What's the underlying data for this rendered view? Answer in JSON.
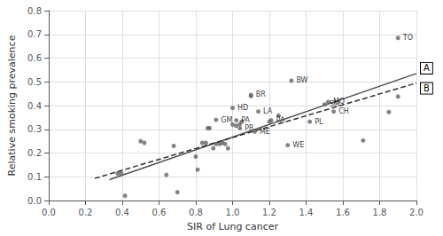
{
  "chart_data": {
    "type": "scatter",
    "xlabel": "SIR of Lung cancer",
    "ylabel": "Relative smoking prevalence",
    "xlim": [
      0,
      2
    ],
    "ylim": [
      0,
      0.8
    ],
    "xticks": [
      {
        "value": 0,
        "label": "0.0"
      },
      0.2,
      0.4,
      0.6,
      0.8,
      {
        "value": 1.0,
        "label": "1.0"
      },
      1.2,
      1.4,
      1.6,
      1.8,
      {
        "value": 2.0,
        "label": "2.0"
      }
    ],
    "yticks": [
      {
        "value": 0,
        "label": "0.0"
      },
      0.1,
      0.2,
      0.3,
      0.4,
      0.5,
      0.6,
      0.7,
      0.8
    ],
    "grid": true,
    "series": [
      {
        "type": "scatter",
        "marker": "circle",
        "color": "#646464",
        "x": [
          0.375,
          0.395,
          0.415,
          0.5,
          0.52,
          0.64,
          0.68,
          0.7,
          0.8,
          0.81,
          0.835,
          0.855,
          0.865,
          0.875,
          0.895,
          0.91,
          0.93,
          0.945,
          0.96,
          0.975,
          1.0,
          1.02,
          1.04,
          1.05,
          1.1,
          1.2,
          1.25,
          1.85,
          1.71,
          1.9,
          1.9,
          1.32,
          1.1,
          1.5,
          1.0,
          1.14,
          1.52,
          1.55,
          0.91,
          1.02,
          1.21,
          1.42,
          1.04,
          1.12,
          1.3
        ],
        "values": [
          0.114,
          0.114,
          0.02,
          0.25,
          0.243,
          0.108,
          0.23,
          0.035,
          0.185,
          0.13,
          0.243,
          0.243,
          0.305,
          0.305,
          0.22,
          0.238,
          0.238,
          0.243,
          0.238,
          0.22,
          0.32,
          0.315,
          0.322,
          0.333,
          0.44,
          0.333,
          0.358,
          0.373,
          0.253,
          0.438,
          0.685,
          0.505,
          0.445,
          0.405,
          0.39,
          0.375,
          0.415,
          0.375,
          0.34,
          0.338,
          0.338,
          0.332,
          0.305,
          0.29,
          0.233
        ],
        "labels": [
          null,
          null,
          null,
          null,
          null,
          null,
          null,
          null,
          null,
          null,
          null,
          null,
          null,
          null,
          null,
          null,
          null,
          null,
          null,
          null,
          null,
          null,
          null,
          null,
          null,
          null,
          null,
          null,
          null,
          null,
          "TO",
          "BW",
          "BR",
          "SM",
          "HD",
          "LA",
          "MQ",
          "CH",
          "GM",
          "PA",
          "PA",
          "PL",
          "PR",
          "ME",
          "WE"
        ]
      },
      {
        "name": "A",
        "type": "line",
        "line_style": "solid",
        "color": "#505050",
        "x": [
          0.33,
          2.0
        ],
        "values": [
          0.088,
          0.535
        ]
      },
      {
        "name": "B",
        "type": "line",
        "line_style": "dashed",
        "color": "#303030",
        "x": [
          0.25,
          2.0
        ],
        "values": [
          0.093,
          0.495
        ]
      }
    ]
  }
}
